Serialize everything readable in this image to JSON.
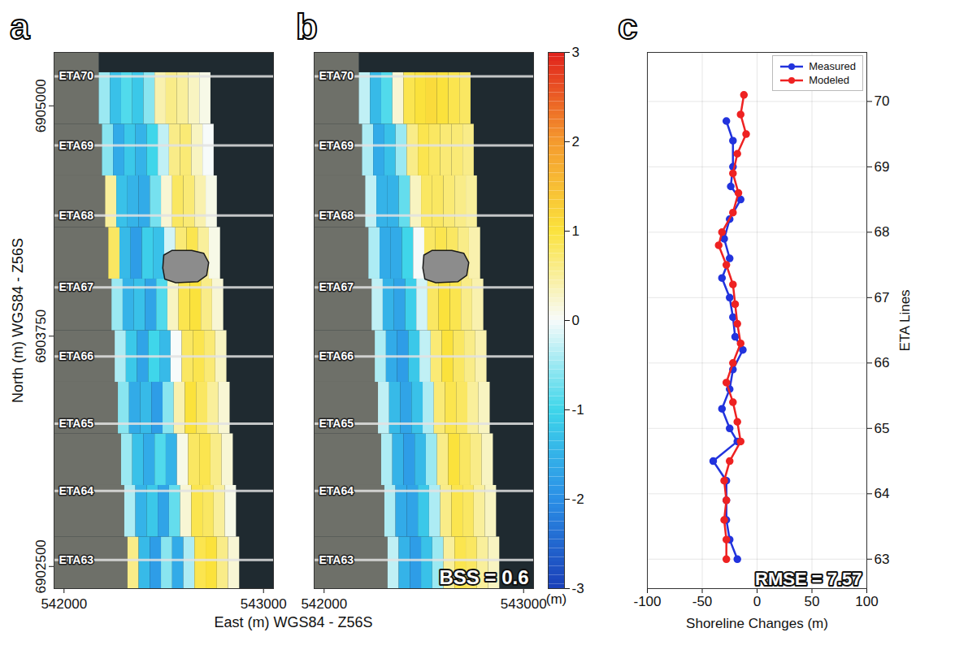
{
  "chart_data": [
    {
      "panel": "a",
      "type": "heatmap",
      "xlabel": "East (m) WGS84 - Z56S",
      "ylabel": "North (m) WGS84 - Z56S",
      "xlim": [
        541950,
        543050
      ],
      "ylim": [
        6902380,
        6905290
      ],
      "xticks": [
        542000,
        543000
      ],
      "yticks": [
        6902500,
        6903750,
        6905000
      ],
      "tick_labels": true,
      "transects": [
        {
          "label": "ETA70",
          "north": 6905160
        },
        {
          "label": "ETA69",
          "north": 6904785
        },
        {
          "label": "ETA68",
          "north": 6904405
        },
        {
          "label": "ETA67",
          "north": 6904015
        },
        {
          "label": "ETA66",
          "north": 6903640
        },
        {
          "label": "ETA65",
          "north": 6903275
        },
        {
          "label": "ETA64",
          "north": 6902910
        },
        {
          "label": "ETA63",
          "north": 6902535
        }
      ],
      "structure_outline": [
        [
          542500,
          6904190
        ],
        [
          542540,
          6904215
        ],
        [
          542640,
          6904215
        ],
        [
          542700,
          6904200
        ],
        [
          542725,
          6904150
        ],
        [
          542715,
          6904080
        ],
        [
          542670,
          6904045
        ],
        [
          542560,
          6904040
        ],
        [
          542505,
          6904060
        ],
        [
          542495,
          6904120
        ]
      ],
      "cell_width": 56,
      "cell_height": 280,
      "rows": [
        {
          "south": 6902380,
          "east": 542320,
          "values": [
            0.6,
            -1.4,
            -1.8,
            -0.6,
            -1.6,
            -0.4,
            0.9,
            1.0,
            0.6,
            0.2
          ]
        },
        {
          "south": 6902660,
          "east": 542304,
          "values": [
            -0.4,
            -1.5,
            -1.2,
            -1.7,
            -0.8,
            0.2,
            0.9,
            0.8,
            0.5,
            0.1
          ]
        },
        {
          "south": 6902940,
          "east": 542288,
          "values": [
            -0.5,
            -1.3,
            -1.6,
            -0.9,
            -1.5,
            0.1,
            0.8,
            0.9,
            0.6,
            0.2
          ]
        },
        {
          "south": 6903220,
          "east": 542272,
          "values": [
            -0.6,
            -1.6,
            -1.4,
            -1.8,
            -0.6,
            0.4,
            1.0,
            0.8,
            0.5,
            0.2
          ]
        },
        {
          "south": 6903500,
          "east": 542256,
          "values": [
            -0.4,
            -1.2,
            -1.7,
            -1.0,
            -1.4,
            0.0,
            0.8,
            0.9,
            0.7,
            0.3
          ]
        },
        {
          "south": 6903780,
          "east": 542240,
          "values": [
            -0.5,
            -1.5,
            -1.3,
            -1.7,
            -0.9,
            0.3,
            0.9,
            1.0,
            0.6,
            0.2
          ]
        },
        {
          "south": 6904060,
          "east": 542224,
          "values": [
            0.8,
            -1.4,
            -1.8,
            -1.1,
            -1.3,
            -0.2,
            0.7,
            0.9,
            0.5,
            0.1
          ]
        },
        {
          "south": 6904340,
          "east": 542208,
          "values": [
            0.5,
            -1.3,
            -1.5,
            -1.6,
            -0.7,
            0.2,
            0.8,
            0.7,
            0.4,
            0.1
          ]
        },
        {
          "south": 6904620,
          "east": 542192,
          "values": [
            -0.6,
            -1.6,
            -1.2,
            -1.5,
            -1.0,
            -0.3,
            0.6,
            0.7,
            0.3,
            0.0
          ]
        },
        {
          "south": 6904900,
          "east": 542176,
          "values": [
            -0.5,
            -1.3,
            -0.9,
            -1.2,
            -0.6,
            0.4,
            0.6,
            0.5,
            0.3,
            0.1
          ]
        }
      ]
    },
    {
      "panel": "b",
      "type": "heatmap",
      "xlim": [
        541950,
        543050
      ],
      "ylim": [
        6902380,
        6905290
      ],
      "xticks": [
        542000,
        543000
      ],
      "tick_labels": "x",
      "annotation": "BSS = 0.6",
      "colorbar": {
        "lim": [
          -3,
          3
        ],
        "ticks": [
          -3,
          -2,
          -1,
          0,
          1,
          2,
          3
        ],
        "label": "(m)"
      },
      "transects": [
        {
          "label": "ETA70",
          "north": 6905160
        },
        {
          "label": "ETA69",
          "north": 6904785
        },
        {
          "label": "ETA68",
          "north": 6904405
        },
        {
          "label": "ETA67",
          "north": 6904015
        },
        {
          "label": "ETA66",
          "north": 6903640
        },
        {
          "label": "ETA65",
          "north": 6903275
        },
        {
          "label": "ETA64",
          "north": 6902910
        },
        {
          "label": "ETA63",
          "north": 6902535
        }
      ],
      "structure_outline": [
        [
          542500,
          6904190
        ],
        [
          542540,
          6904215
        ],
        [
          542640,
          6904215
        ],
        [
          542700,
          6904200
        ],
        [
          542725,
          6904150
        ],
        [
          542715,
          6904080
        ],
        [
          542670,
          6904045
        ],
        [
          542560,
          6904040
        ],
        [
          542505,
          6904060
        ],
        [
          542495,
          6904120
        ]
      ],
      "cell_width": 56,
      "cell_height": 280,
      "rows": [
        {
          "south": 6902380,
          "east": 542320,
          "values": [
            -0.3,
            -1.5,
            -1.8,
            -1.3,
            -0.5,
            0.5,
            0.9,
            0.8,
            0.5,
            0.3
          ]
        },
        {
          "south": 6902660,
          "east": 542304,
          "values": [
            -0.4,
            -1.6,
            -1.7,
            -1.2,
            -0.4,
            0.6,
            0.9,
            0.8,
            0.5,
            0.3
          ]
        },
        {
          "south": 6902940,
          "east": 542288,
          "values": [
            -0.4,
            -1.5,
            -1.8,
            -1.4,
            -0.5,
            0.6,
            1.0,
            0.8,
            0.6,
            0.3
          ]
        },
        {
          "south": 6903220,
          "east": 542272,
          "values": [
            -0.3,
            -1.4,
            -1.7,
            -1.3,
            -0.4,
            0.7,
            0.9,
            0.8,
            0.5,
            0.3
          ]
        },
        {
          "south": 6903500,
          "east": 542256,
          "values": [
            -0.4,
            -1.6,
            -1.8,
            -1.2,
            -0.3,
            0.7,
            1.0,
            0.8,
            0.6,
            0.4
          ]
        },
        {
          "south": 6903780,
          "east": 542240,
          "values": [
            -0.3,
            -1.5,
            -1.7,
            -1.1,
            -0.2,
            0.8,
            1.0,
            0.9,
            0.6,
            0.4
          ]
        },
        {
          "south": 6904060,
          "east": 542224,
          "values": [
            -0.4,
            -1.6,
            -1.6,
            -1.0,
            0.0,
            0.8,
            0.9,
            0.8,
            0.6,
            0.4
          ]
        },
        {
          "south": 6904340,
          "east": 542208,
          "values": [
            -0.3,
            -1.5,
            -1.5,
            -0.8,
            0.3,
            0.8,
            0.8,
            0.7,
            0.6,
            0.5
          ]
        },
        {
          "south": 6904620,
          "east": 542192,
          "values": [
            -0.4,
            -1.6,
            -1.3,
            -0.5,
            0.6,
            0.9,
            0.8,
            0.7,
            0.7,
            0.6
          ]
        },
        {
          "south": 6904900,
          "east": 542176,
          "values": [
            -0.3,
            -1.4,
            -0.9,
            0.2,
            0.9,
            1.0,
            1.1,
            1.0,
            0.9,
            0.8
          ]
        }
      ]
    },
    {
      "panel": "c",
      "type": "line",
      "xlabel": "Shoreline Changes (m)",
      "ylabel": "ETA Lines",
      "xlim": [
        -100,
        100
      ],
      "xticks": [
        -100,
        -50,
        0,
        50,
        100
      ],
      "ylim": [
        62.55,
        70.75
      ],
      "yticks": [
        63,
        64,
        65,
        66,
        67,
        68,
        69,
        70
      ],
      "grid": true,
      "legend": "upper right",
      "annotation": "RMSE = 7.57",
      "series": [
        {
          "name": "Measured",
          "color": "#2233dd",
          "marker": "circle",
          "x": [
            -28,
            -22,
            -22,
            -24,
            -15,
            -25,
            -30,
            -25,
            -32,
            -25,
            -22,
            -20,
            -13,
            -22,
            -25,
            -32,
            -25,
            -18,
            -40,
            -28,
            -28,
            -28,
            -25,
            -18
          ],
          "y": [
            69.7,
            69.4,
            69.0,
            68.7,
            68.5,
            68.2,
            67.9,
            67.6,
            67.3,
            67.0,
            66.7,
            66.4,
            66.2,
            65.9,
            65.6,
            65.3,
            65.0,
            64.8,
            64.5,
            64.2,
            63.9,
            63.6,
            63.3,
            63.0
          ]
        },
        {
          "name": "Modeled",
          "color": "#ee2222",
          "marker": "circle",
          "x": [
            -12,
            -15,
            -10,
            -18,
            -22,
            -17,
            -22,
            -32,
            -35,
            -28,
            -22,
            -20,
            -18,
            -15,
            -22,
            -28,
            -22,
            -18,
            -15,
            -25,
            -30,
            -28,
            -30,
            -28,
            -28
          ],
          "y": [
            70.1,
            69.8,
            69.5,
            69.2,
            68.9,
            68.6,
            68.3,
            68.0,
            67.8,
            67.5,
            67.2,
            66.9,
            66.6,
            66.3,
            66.0,
            65.7,
            65.4,
            65.1,
            64.8,
            64.5,
            64.2,
            63.9,
            63.6,
            63.3,
            63.0
          ]
        }
      ]
    }
  ]
}
